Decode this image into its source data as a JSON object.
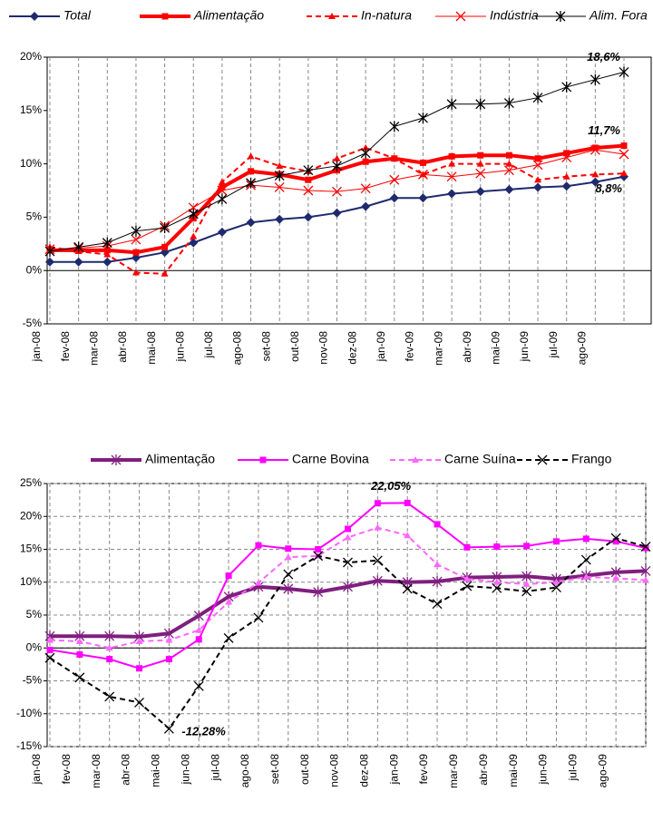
{
  "chart_data": [
    {
      "type": "line",
      "categories": [
        "jan-08",
        "fev-08",
        "mar-08",
        "abr-08",
        "mai-08",
        "jun-08",
        "jul-08",
        "ago-08",
        "set-08",
        "out-08",
        "nov-08",
        "dez-08",
        "jan-09",
        "fev-09",
        "mar-09",
        "abr-09",
        "mai-09",
        "jun-09",
        "jul-09",
        "ago-09",
        null
      ],
      "series": [
        {
          "name": "Total",
          "color": "#1f2a6e",
          "width": 2,
          "dash": false,
          "marker": "diamond",
          "values": [
            0.8,
            0.8,
            0.8,
            1.2,
            1.7,
            2.6,
            3.6,
            4.5,
            4.8,
            5.0,
            5.4,
            6.0,
            6.8,
            6.8,
            7.2,
            7.4,
            7.6,
            7.8,
            7.9,
            8.3,
            8.8
          ]
        },
        {
          "name": "Alimentação",
          "color": "#ff0000",
          "width": 4,
          "dash": false,
          "marker": "square",
          "values": [
            1.9,
            1.9,
            1.9,
            1.7,
            2.2,
            4.9,
            7.8,
            9.3,
            9.0,
            8.5,
            9.4,
            10.2,
            10.5,
            10.1,
            10.7,
            10.8,
            10.8,
            10.5,
            11.0,
            11.5,
            11.7
          ]
        },
        {
          "name": "In-natura",
          "color": "#ff0000",
          "width": 2,
          "dash": true,
          "marker": "triangle",
          "values": [
            2.2,
            1.8,
            1.5,
            -0.2,
            -0.3,
            3.2,
            8.3,
            10.7,
            9.8,
            9.3,
            10.5,
            11.5,
            10.5,
            9.0,
            10.0,
            10.0,
            10.0,
            8.5,
            8.8,
            9.0,
            9.1
          ]
        },
        {
          "name": "Indústria",
          "color": "#ff0000",
          "width": 1,
          "dash": false,
          "marker": "x",
          "values": [
            2.0,
            2.1,
            2.3,
            2.9,
            4.2,
            5.9,
            7.5,
            8.0,
            7.8,
            7.5,
            7.4,
            7.7,
            8.5,
            9.0,
            8.8,
            9.1,
            9.4,
            9.9,
            10.6,
            11.3,
            10.9
          ]
        },
        {
          "name": "Alim. Fora",
          "color": "#000000",
          "width": 1,
          "dash": false,
          "marker": "star",
          "values": [
            1.8,
            2.2,
            2.6,
            3.7,
            4.0,
            5.3,
            6.7,
            8.2,
            8.9,
            9.4,
            9.8,
            11.0,
            13.5,
            14.3,
            15.6,
            15.6,
            15.7,
            16.2,
            17.2,
            17.9,
            18.6
          ]
        }
      ],
      "annotations": [
        "18,6%",
        "11,7%",
        "8,8%"
      ],
      "legend_italic": true,
      "ylim": [
        -5,
        20
      ],
      "yticks": [
        {
          "value": -5,
          "label": "-5%"
        },
        {
          "value": 0,
          "label": "0%"
        },
        {
          "value": 5,
          "label": "5%"
        },
        {
          "value": 10,
          "label": "10%"
        },
        {
          "value": 15,
          "label": "15%"
        },
        {
          "value": 20,
          "label": "20%"
        }
      ],
      "grid": {
        "x": true,
        "y": false
      }
    },
    {
      "type": "line",
      "categories": [
        "jan-08",
        "fev-08",
        "mar-08",
        "abr-08",
        "mai-08",
        "jun-08",
        "jul-08",
        "ago-08",
        "set-08",
        "out-08",
        "nov-08",
        "dez-08",
        "jan-09",
        "fev-09",
        "mar-09",
        "abr-09",
        "mai-09",
        "jun-09",
        "jul-09",
        "ago-09",
        null
      ],
      "series": [
        {
          "name": "Alimentação",
          "color": "#7f1f7f",
          "width": 4,
          "dash": false,
          "marker": "star",
          "values": [
            1.8,
            1.8,
            1.8,
            1.7,
            2.2,
            4.9,
            7.8,
            9.3,
            9.0,
            8.5,
            9.3,
            10.2,
            10.0,
            10.1,
            10.7,
            10.8,
            10.9,
            10.5,
            11.0,
            11.5,
            11.7
          ]
        },
        {
          "name": "Carne Bovina",
          "color": "#ff00ff",
          "width": 2,
          "dash": false,
          "marker": "square",
          "values": [
            -0.3,
            -1.0,
            -1.7,
            -3.1,
            -1.7,
            1.3,
            11.0,
            15.6,
            15.1,
            15.0,
            18.1,
            22.0,
            22.05,
            18.8,
            15.3,
            15.4,
            15.5,
            16.2,
            16.6,
            16.2,
            15.2
          ]
        },
        {
          "name": "Carne Suína",
          "color": "#ff66ff",
          "width": 2,
          "dash": true,
          "marker": "triangle",
          "values": [
            1.2,
            1.0,
            0.0,
            1.0,
            1.2,
            2.7,
            7.0,
            9.9,
            13.8,
            14.0,
            16.8,
            18.3,
            17.1,
            12.7,
            10.5,
            10.0,
            9.7,
            10.0,
            10.8,
            10.6,
            10.3
          ]
        },
        {
          "name": "Frango",
          "color": "#000000",
          "width": 2,
          "dash": true,
          "marker": "x",
          "values": [
            -1.5,
            -4.5,
            -7.4,
            -8.3,
            -12.28,
            -5.8,
            1.5,
            4.6,
            11.2,
            14.0,
            13.0,
            13.3,
            9.0,
            6.7,
            9.4,
            9.1,
            8.6,
            9.2,
            13.4,
            16.7,
            15.4
          ]
        }
      ],
      "annotations": [
        "22,05%",
        "-12,28%"
      ],
      "legend_italic": false,
      "ylim": [
        -15,
        25
      ],
      "yticks": [
        {
          "value": -15,
          "label": "-15%"
        },
        {
          "value": -10,
          "label": "-10%"
        },
        {
          "value": -5,
          "label": "-5%"
        },
        {
          "value": 0,
          "label": "0%"
        },
        {
          "value": 5,
          "label": "5%"
        },
        {
          "value": 10,
          "label": "10%"
        },
        {
          "value": 15,
          "label": "15%"
        },
        {
          "value": 20,
          "label": "20%"
        },
        {
          "value": 25,
          "label": "25%"
        }
      ],
      "grid": {
        "x": true,
        "y": true
      }
    }
  ]
}
